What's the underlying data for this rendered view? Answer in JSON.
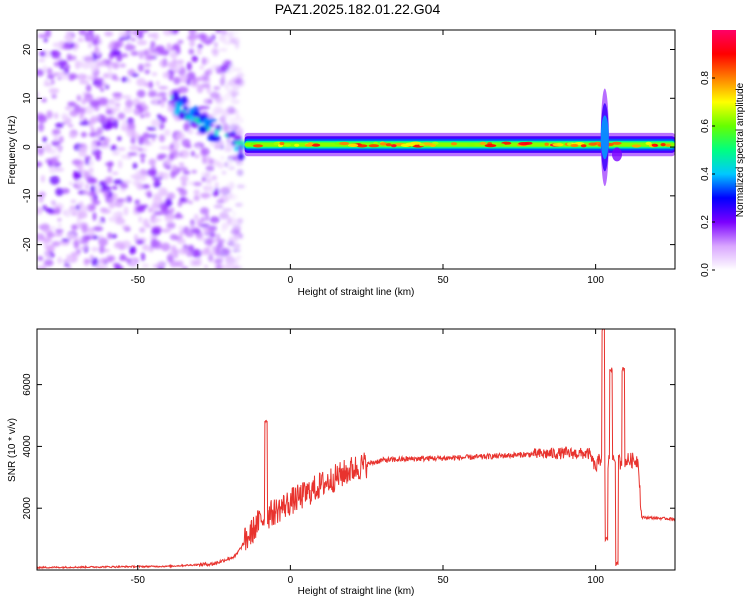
{
  "page_title": "PAZ1.2025.182.01.22.G04",
  "chart_data": [
    {
      "type": "heatmap",
      "xlabel": "Height of straight line (km)",
      "ylabel": "Frequency (Hz)",
      "xlim": [
        -83,
        126
      ],
      "ylim": [
        -25,
        24
      ],
      "x_ticks": [
        -50,
        0,
        50,
        100
      ],
      "y_ticks": [
        -20,
        -10,
        0,
        10,
        20
      ],
      "colorbar": {
        "label": "Normalized spectral amplitude",
        "range": [
          0,
          1
        ],
        "ticks": [
          0.0,
          0.2,
          0.4,
          0.6,
          0.8
        ],
        "tick_labels": [
          "0.0",
          "0.2",
          "0.4",
          "0.6",
          "0.8"
        ],
        "colors": [
          "#ffffff",
          "#d9a6ff",
          "#7a00ff",
          "#0000ff",
          "#00c8ff",
          "#00ff80",
          "#66ff00",
          "#ffff00",
          "#ff8000",
          "#ff0000",
          "#ff0066"
        ]
      },
      "features": {
        "noise_region_x": [
          -83,
          -18
        ],
        "transition_x": [
          -38,
          -15
        ],
        "carrier_line_x": [
          -15,
          126
        ],
        "carrier_frequency": 0.5,
        "carrier_peak_amplitude": 0.95,
        "disturbance_x": 103
      }
    },
    {
      "type": "line",
      "xlabel": "Height of straight line (km)",
      "ylabel": "SNR (10 * v/v)",
      "xlim": [
        -83,
        126
      ],
      "ylim": [
        0,
        7800
      ],
      "x_ticks": [
        -50,
        0,
        50,
        100
      ],
      "y_ticks": [
        2000,
        4000,
        6000
      ],
      "color": "#e8332e",
      "profile": {
        "x": [
          -83,
          -40,
          -25,
          -18,
          -15,
          -10,
          -5,
          0,
          5,
          10,
          15,
          20,
          25,
          30,
          40,
          50,
          60,
          70,
          80,
          90,
          98,
          100,
          102,
          103,
          104,
          105,
          106,
          107,
          108,
          110,
          114,
          115,
          116,
          120,
          126
        ],
        "y": [
          80,
          120,
          200,
          450,
          900,
          1600,
          1900,
          2200,
          2450,
          2750,
          3000,
          3250,
          3420,
          3550,
          3600,
          3620,
          3650,
          3700,
          3750,
          3780,
          3760,
          3300,
          3700,
          3800,
          3400,
          3700,
          3600,
          3550,
          3500,
          3550,
          3550,
          1700,
          1700,
          1680,
          1650
        ]
      },
      "spikes": [
        {
          "x": -8,
          "y": 4850
        },
        {
          "x": 102.5,
          "y": 7800
        },
        {
          "x": 103.5,
          "y": 1000
        },
        {
          "x": 105,
          "y": 6500
        },
        {
          "x": 107,
          "y": 200
        },
        {
          "x": 109,
          "y": 6500
        }
      ]
    }
  ]
}
